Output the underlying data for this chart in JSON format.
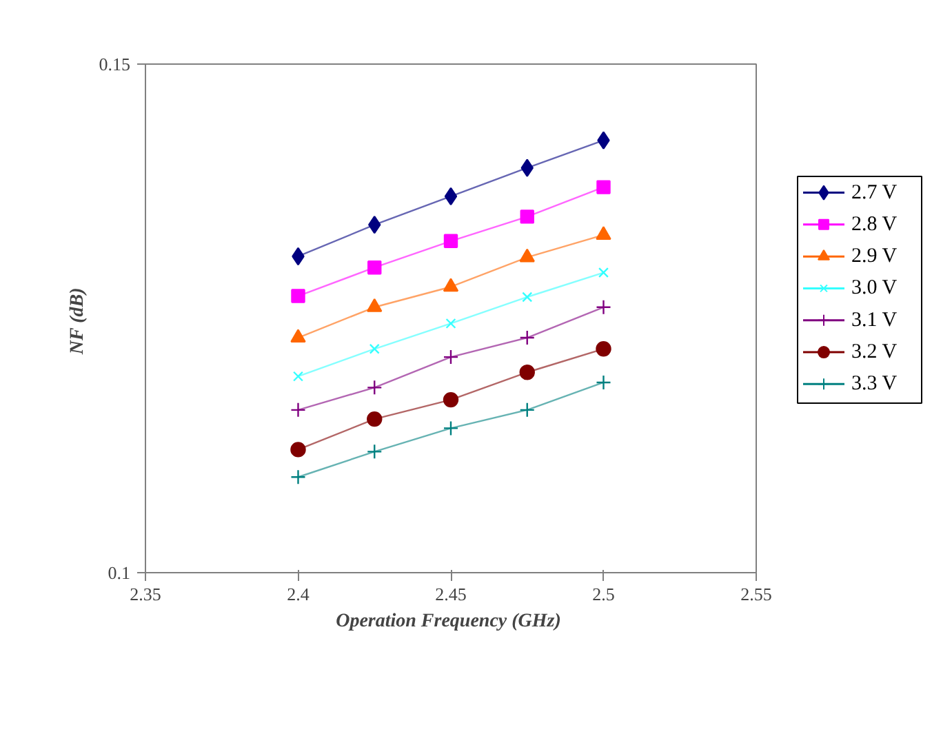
{
  "chart_data": {
    "type": "line",
    "xlabel": "Operation Frequency  (GHz)",
    "ylabel": "NF  (dB)",
    "x": [
      2.4,
      2.425,
      2.45,
      2.475,
      2.5
    ],
    "xlim": [
      2.35,
      2.55
    ],
    "xticks": [
      2.35,
      2.4,
      2.45,
      2.5,
      2.55
    ],
    "ylim": [
      0.1,
      0.15
    ],
    "yticks": [
      0.1,
      0.15
    ],
    "grid": false,
    "legend": "right",
    "series": [
      {
        "name": "2.7 V",
        "color": "#000080",
        "marker": "diamond",
        "values": [
          0.1311,
          0.1342,
          0.137,
          0.1398,
          0.1425
        ]
      },
      {
        "name": "2.8 V",
        "color": "#ff00ff",
        "marker": "square",
        "values": [
          0.1272,
          0.13,
          0.1326,
          0.135,
          0.1379
        ]
      },
      {
        "name": "2.9 V",
        "color": "#ff6600",
        "marker": "triangle",
        "values": [
          0.1231,
          0.1261,
          0.1281,
          0.131,
          0.1332
        ]
      },
      {
        "name": "3.0 V",
        "color": "#33ffff",
        "marker": "x",
        "values": [
          0.1193,
          0.122,
          0.1245,
          0.1271,
          0.1295
        ]
      },
      {
        "name": "3.1 V",
        "color": "#800080",
        "marker": "cross",
        "values": [
          0.116,
          0.1182,
          0.1212,
          0.1231,
          0.1261
        ]
      },
      {
        "name": "3.2 V",
        "color": "#800000",
        "marker": "circle",
        "values": [
          0.1121,
          0.1151,
          0.117,
          0.1197,
          0.122
        ]
      },
      {
        "name": "3.3 V",
        "color": "#008080",
        "marker": "cross",
        "values": [
          0.1094,
          0.1119,
          0.1142,
          0.116,
          0.1187
        ]
      }
    ]
  }
}
